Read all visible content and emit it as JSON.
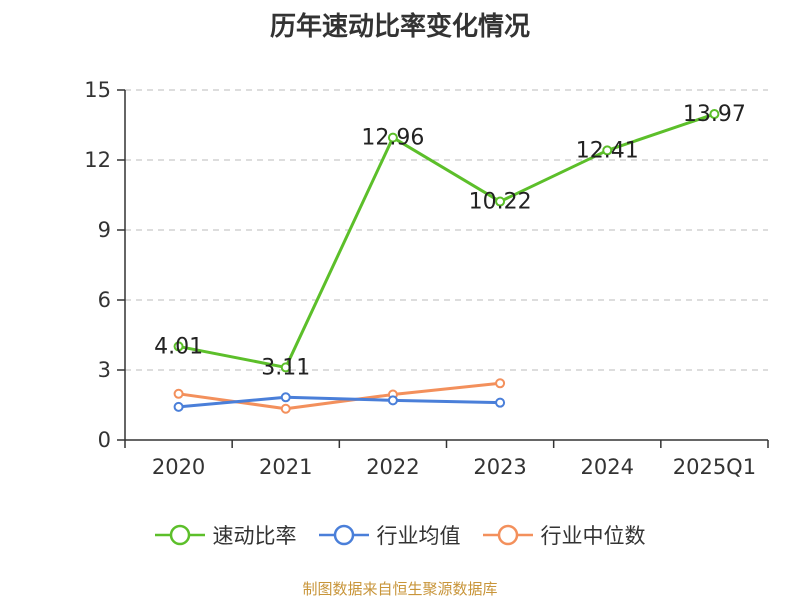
{
  "title": "历年速动比率变化情况",
  "source_note": "制图数据来自恒生聚源数据库",
  "colors": {
    "axis": "#333333",
    "grid": "#bbbbbb",
    "text": "#333333",
    "source": "#c8953a"
  },
  "chart_data": {
    "type": "line",
    "title": "历年速动比率变化情况",
    "xlabel": "",
    "ylabel": "",
    "categories": [
      "2020",
      "2021",
      "2022",
      "2023",
      "2024",
      "2025Q1"
    ],
    "y_ticks": [
      "0",
      "3",
      "6",
      "9",
      "12",
      "15"
    ],
    "ylim": [
      0,
      15
    ],
    "grid": true,
    "legend_position": "bottom",
    "series": [
      {
        "name": "速动比率",
        "color": "#5cbf2a",
        "values": [
          4.01,
          3.11,
          12.96,
          10.22,
          12.41,
          13.97
        ],
        "labels": [
          "4.01",
          "3.11",
          "12.96",
          "10.22",
          "12.41",
          "13.97"
        ]
      },
      {
        "name": "行业均值",
        "color": "#4a7fd9",
        "values": [
          1.42,
          1.83,
          1.7,
          1.6,
          null,
          null
        ]
      },
      {
        "name": "行业中位数",
        "color": "#f3905c",
        "values": [
          1.98,
          1.34,
          1.95,
          2.43,
          null,
          null
        ]
      }
    ]
  }
}
